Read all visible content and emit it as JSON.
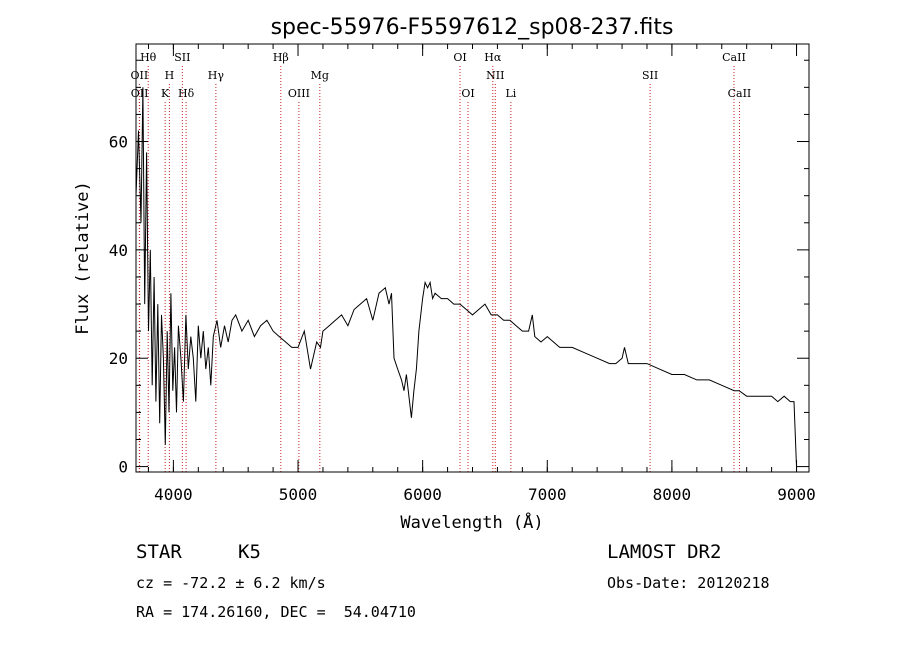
{
  "chart_data": {
    "type": "line",
    "title": "spec-55976-F5597612_sp08-237.fits",
    "xlabel": "Wavelength (Å)",
    "ylabel": "Flux (relative)",
    "xlim": [
      3700,
      9100
    ],
    "ylim": [
      -1,
      78
    ],
    "xticks": [
      4000,
      5000,
      6000,
      7000,
      8000,
      9000
    ],
    "yticks": [
      0,
      20,
      40,
      60
    ],
    "line_color": "#000000",
    "marker_color": "#cc2222",
    "grid": false,
    "lines": [
      {
        "label": "OII",
        "x": 3727,
        "row": 1
      },
      {
        "label": "OII",
        "x": 3729,
        "row": 2
      },
      {
        "label": "Hθ",
        "x": 3798,
        "row": 0
      },
      {
        "label": "K",
        "x": 3934,
        "row": 2
      },
      {
        "label": "H",
        "x": 3968,
        "row": 1
      },
      {
        "label": "SII",
        "x": 4072,
        "row": 0
      },
      {
        "label": "Hδ",
        "x": 4102,
        "row": 2
      },
      {
        "label": "Hγ",
        "x": 4341,
        "row": 1
      },
      {
        "label": "Hβ",
        "x": 4862,
        "row": 0
      },
      {
        "label": "OIII",
        "x": 5007,
        "row": 2
      },
      {
        "label": "Mg",
        "x": 5175,
        "row": 1
      },
      {
        "label": "OI",
        "x": 6300,
        "row": 0
      },
      {
        "label": "OI",
        "x": 6364,
        "row": 2
      },
      {
        "label": "Hα",
        "x": 6563,
        "row": 0
      },
      {
        "label": "NII",
        "x": 6583,
        "row": 1
      },
      {
        "label": "Li",
        "x": 6708,
        "row": 2
      },
      {
        "label": "SII",
        "x": 7825,
        "row": 1
      },
      {
        "label": "CaII",
        "x": 8498,
        "row": 0
      },
      {
        "label": "CaII",
        "x": 8542,
        "row": 2
      }
    ],
    "series": [
      {
        "x": [
          3700,
          3720,
          3740,
          3755,
          3770,
          3785,
          3800,
          3815,
          3830,
          3845,
          3860,
          3875,
          3890,
          3905,
          3920,
          3935,
          3950,
          3965,
          3980,
          3995,
          4010,
          4025,
          4040,
          4060,
          4080,
          4100,
          4120,
          4140,
          4160,
          4180,
          4200,
          4220,
          4240,
          4260,
          4280,
          4300,
          4320,
          4350,
          4380,
          4410,
          4440,
          4470,
          4500,
          4550,
          4600,
          4650,
          4700,
          4750,
          4800,
          4850,
          4900,
          4950,
          5000,
          5050,
          5100,
          5150,
          5180,
          5200,
          5250,
          5300,
          5350,
          5400,
          5450,
          5500,
          5550,
          5600,
          5650,
          5700,
          5730,
          5750,
          5770,
          5800,
          5830,
          5850,
          5870,
          5890,
          5910,
          5930,
          5950,
          5970,
          6000,
          6020,
          6040,
          6060,
          6080,
          6100,
          6150,
          6200,
          6250,
          6300,
          6350,
          6400,
          6450,
          6500,
          6550,
          6600,
          6650,
          6700,
          6750,
          6800,
          6850,
          6880,
          6900,
          6950,
          7000,
          7100,
          7200,
          7300,
          7400,
          7500,
          7550,
          7600,
          7620,
          7650,
          7700,
          7800,
          7900,
          8000,
          8100,
          8200,
          8300,
          8400,
          8500,
          8540,
          8600,
          8700,
          8800,
          8850,
          8900,
          8950,
          8980,
          9000
        ],
        "y": [
          50,
          62,
          45,
          70,
          30,
          58,
          25,
          40,
          15,
          35,
          12,
          30,
          8,
          28,
          20,
          4,
          25,
          10,
          32,
          14,
          22,
          10,
          26,
          20,
          12,
          28,
          18,
          24,
          20,
          12,
          26,
          20,
          25,
          18,
          22,
          15,
          24,
          27,
          22,
          26,
          23,
          27,
          28,
          25,
          27,
          24,
          26,
          27,
          25,
          24,
          23,
          22,
          22,
          25,
          18,
          23,
          22,
          25,
          26,
          27,
          28,
          26,
          29,
          30,
          31,
          27,
          32,
          33,
          30,
          32,
          20,
          18,
          16,
          14,
          17,
          13,
          9,
          14,
          18,
          25,
          31,
          34,
          33,
          34,
          31,
          32,
          31,
          31,
          30,
          30,
          29,
          28,
          29,
          30,
          28,
          28,
          27,
          27,
          26,
          25,
          25,
          28,
          24,
          23,
          24,
          22,
          22,
          21,
          20,
          19,
          19,
          20,
          22,
          19,
          19,
          19,
          18,
          17,
          17,
          16,
          16,
          15,
          14,
          14,
          13,
          13,
          13,
          12,
          13,
          12,
          12,
          0
        ]
      }
    ]
  },
  "info": {
    "object_class": "STAR",
    "subclass": "K5",
    "survey": "LAMOST DR2",
    "redshift": "cz = -72.2 ± 6.2 km/s",
    "obs_date": "Obs-Date: 20120218",
    "coords": "RA = 174.26160, DEC =  54.04710"
  }
}
